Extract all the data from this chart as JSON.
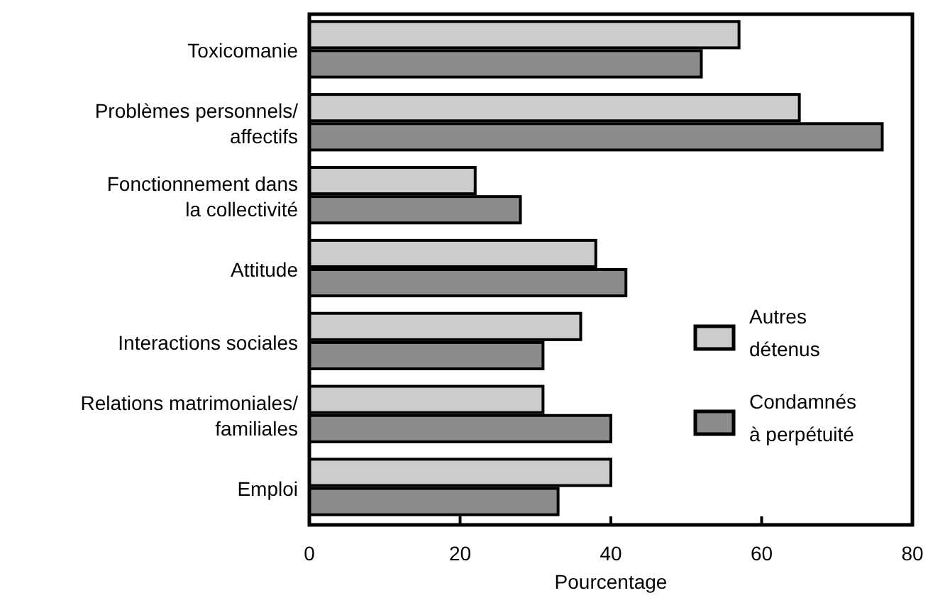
{
  "chart_data": {
    "type": "bar",
    "orientation": "horizontal",
    "xlabel": "Pourcentage",
    "categories": [
      "Toxicomanie",
      "Problèmes personnels/\naffectifs",
      "Fonctionnement dans\nla collectivité",
      "Attitude",
      "Interactions sociales",
      "Relations matrimoniales/\nfamiliales",
      "Emploi"
    ],
    "series": [
      {
        "name": "Autres\ndétenus",
        "color": "#cccccc",
        "values": [
          57,
          65,
          22,
          38,
          36,
          31,
          40
        ]
      },
      {
        "name": "Condamnés\nà perpétuité",
        "color": "#8c8c8c",
        "values": [
          52,
          76,
          28,
          42,
          31,
          40,
          33
        ]
      }
    ],
    "xlim": [
      0,
      80
    ],
    "xticks": [
      0,
      20,
      40,
      60,
      80
    ],
    "grid": false,
    "legend": "right"
  }
}
